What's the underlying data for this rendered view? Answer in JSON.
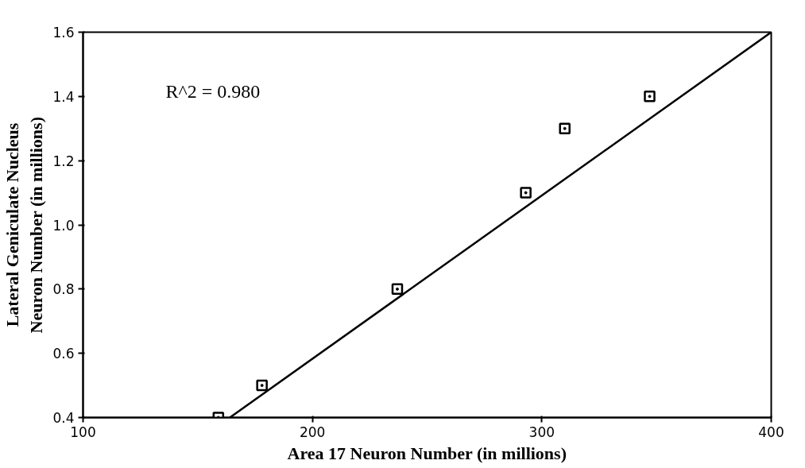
{
  "chart_data": {
    "type": "scatter",
    "xlabel": "Area 17 Neuron Number (in millions)",
    "ylabel": "Lateral Geniculate Nucleus\nNeuron Number (in millions)",
    "annotations": [
      "R^2 = 0.980"
    ],
    "grid": false,
    "xlim": [
      100,
      400
    ],
    "xticks": [
      100,
      200,
      300,
      400
    ],
    "ylim": [
      0.4,
      1.6
    ],
    "yticks": [
      {
        "value": 0.4,
        "label": "0.4"
      },
      {
        "value": 0.6,
        "label": "0.6"
      },
      {
        "value": 0.8,
        "label": "0.8"
      },
      {
        "value": 1.0,
        "label": "1.0"
      },
      {
        "value": 1.2,
        "label": "1.2"
      },
      {
        "value": 1.4,
        "label": "1.4"
      },
      {
        "value": 1.6,
        "label": "1.6"
      }
    ],
    "series": [
      {
        "color": "#000000",
        "marker": "square",
        "x": [
          159,
          178,
          237,
          293,
          310,
          347
        ],
        "values": [
          0.4,
          0.5,
          0.8,
          1.1,
          1.3,
          1.4
        ]
      },
      {
        "type": "line",
        "color": "#000000",
        "x": [
          164,
          400
        ],
        "values": [
          0.4,
          1.6
        ]
      }
    ]
  }
}
